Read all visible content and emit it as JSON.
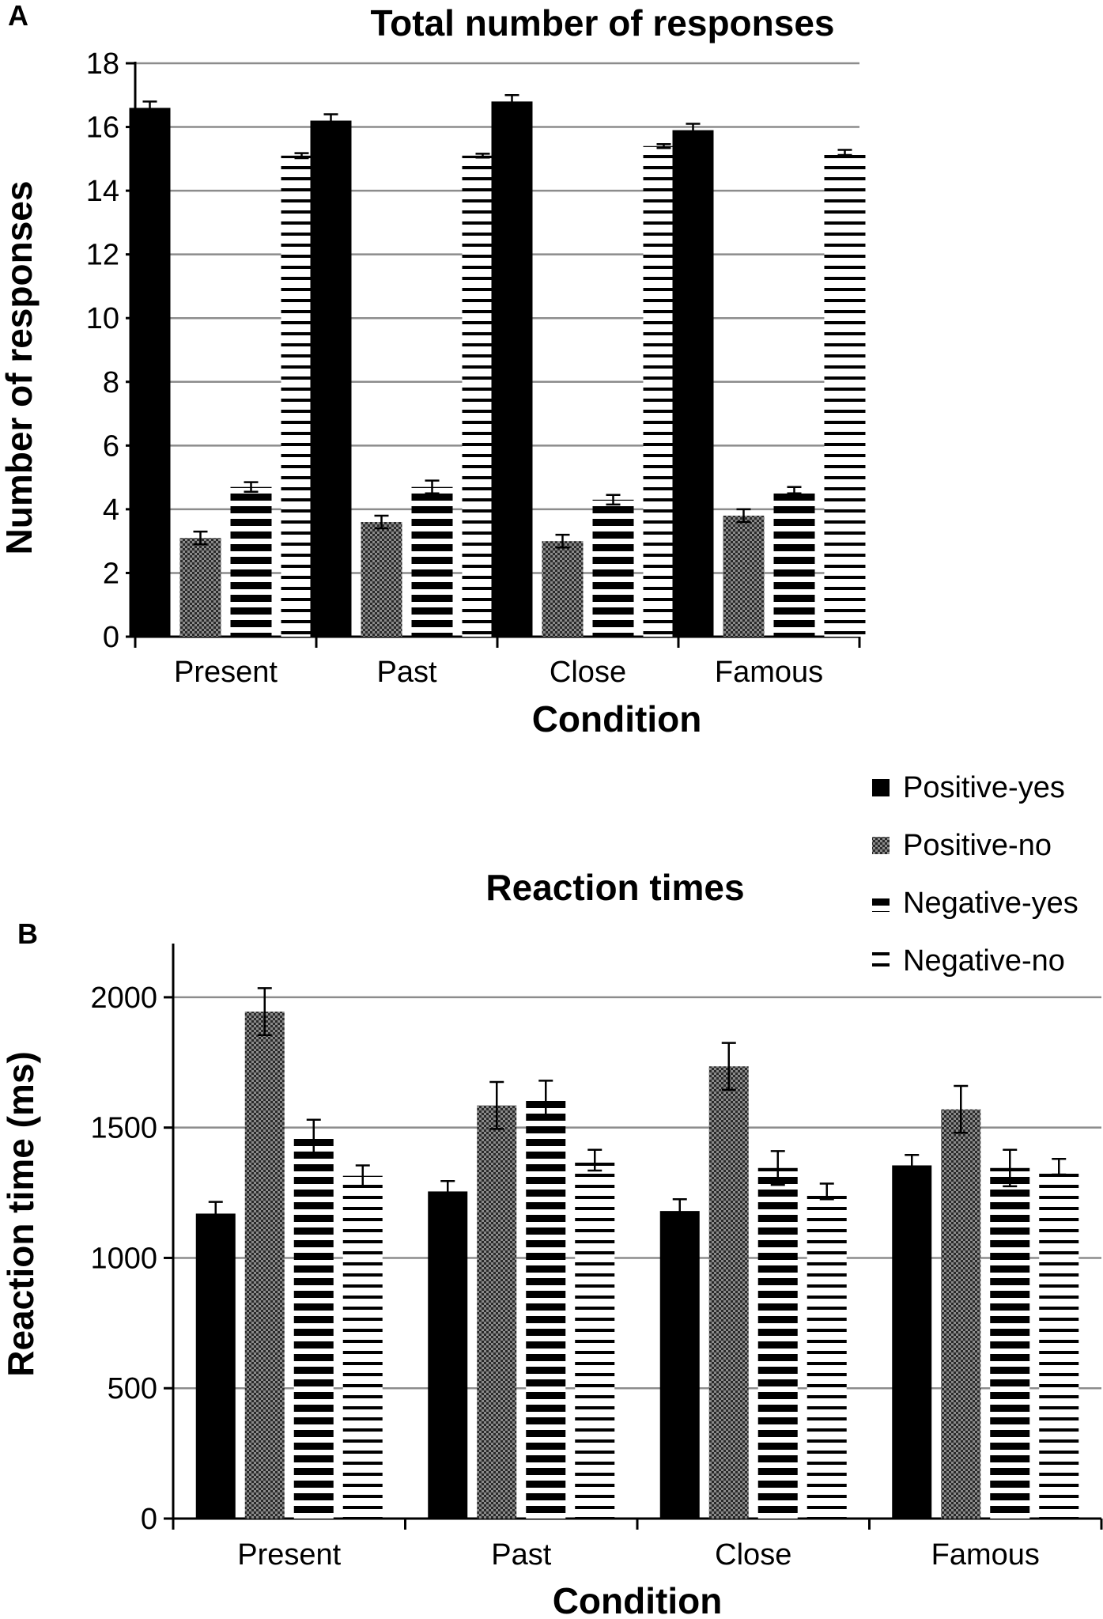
{
  "chart_data": [
    {
      "panel_label": "A",
      "type": "bar",
      "title": "Total number of responses",
      "xlabel": "Condition",
      "ylabel": "Number of responses",
      "categories": [
        "Present",
        "Past",
        "Close",
        "Famous"
      ],
      "ylim": [
        0,
        18
      ],
      "yticks": [
        0,
        2,
        4,
        6,
        8,
        10,
        12,
        14,
        16,
        18
      ],
      "grid": true,
      "series": [
        {
          "name": "Positive-yes",
          "values": [
            16.6,
            16.2,
            16.8,
            15.9
          ],
          "errors": [
            0.2,
            0.2,
            0.2,
            0.2
          ]
        },
        {
          "name": "Positive-no",
          "values": [
            3.1,
            3.6,
            3.0,
            3.8
          ],
          "errors": [
            0.2,
            0.2,
            0.2,
            0.2
          ]
        },
        {
          "name": "Negative-yes",
          "values": [
            4.7,
            4.7,
            4.3,
            4.6
          ],
          "errors": [
            0.15,
            0.2,
            0.15,
            0.1
          ]
        },
        {
          "name": "Negative-no",
          "values": [
            15.1,
            15.1,
            15.4,
            15.2
          ],
          "errors": [
            0.08,
            0.06,
            0.06,
            0.08
          ]
        }
      ]
    },
    {
      "panel_label": "B",
      "type": "bar",
      "title": "Reaction times",
      "xlabel": "Condition",
      "ylabel": "Reaction time (ms)",
      "categories": [
        "Present",
        "Past",
        "Close",
        "Famous"
      ],
      "ylim": [
        0,
        2200
      ],
      "yticks": [
        0,
        500,
        1000,
        1500,
        2000
      ],
      "grid": true,
      "series": [
        {
          "name": "Positive-yes",
          "values": [
            1170,
            1255,
            1180,
            1355
          ],
          "errors": [
            45,
            40,
            45,
            40
          ]
        },
        {
          "name": "Positive-no",
          "values": [
            1945,
            1585,
            1735,
            1570
          ],
          "errors": [
            90,
            90,
            90,
            90
          ]
        },
        {
          "name": "Negative-yes",
          "values": [
            1465,
            1615,
            1345,
            1345
          ],
          "errors": [
            65,
            65,
            65,
            70
          ]
        },
        {
          "name": "Negative-no",
          "values": [
            1315,
            1375,
            1255,
            1350
          ],
          "errors": [
            40,
            40,
            30,
            30
          ]
        }
      ]
    }
  ],
  "legend": {
    "placement": "right, between panels",
    "items": [
      "Positive-yes",
      "Positive-no",
      "Negative-yes",
      "Negative-no"
    ]
  }
}
